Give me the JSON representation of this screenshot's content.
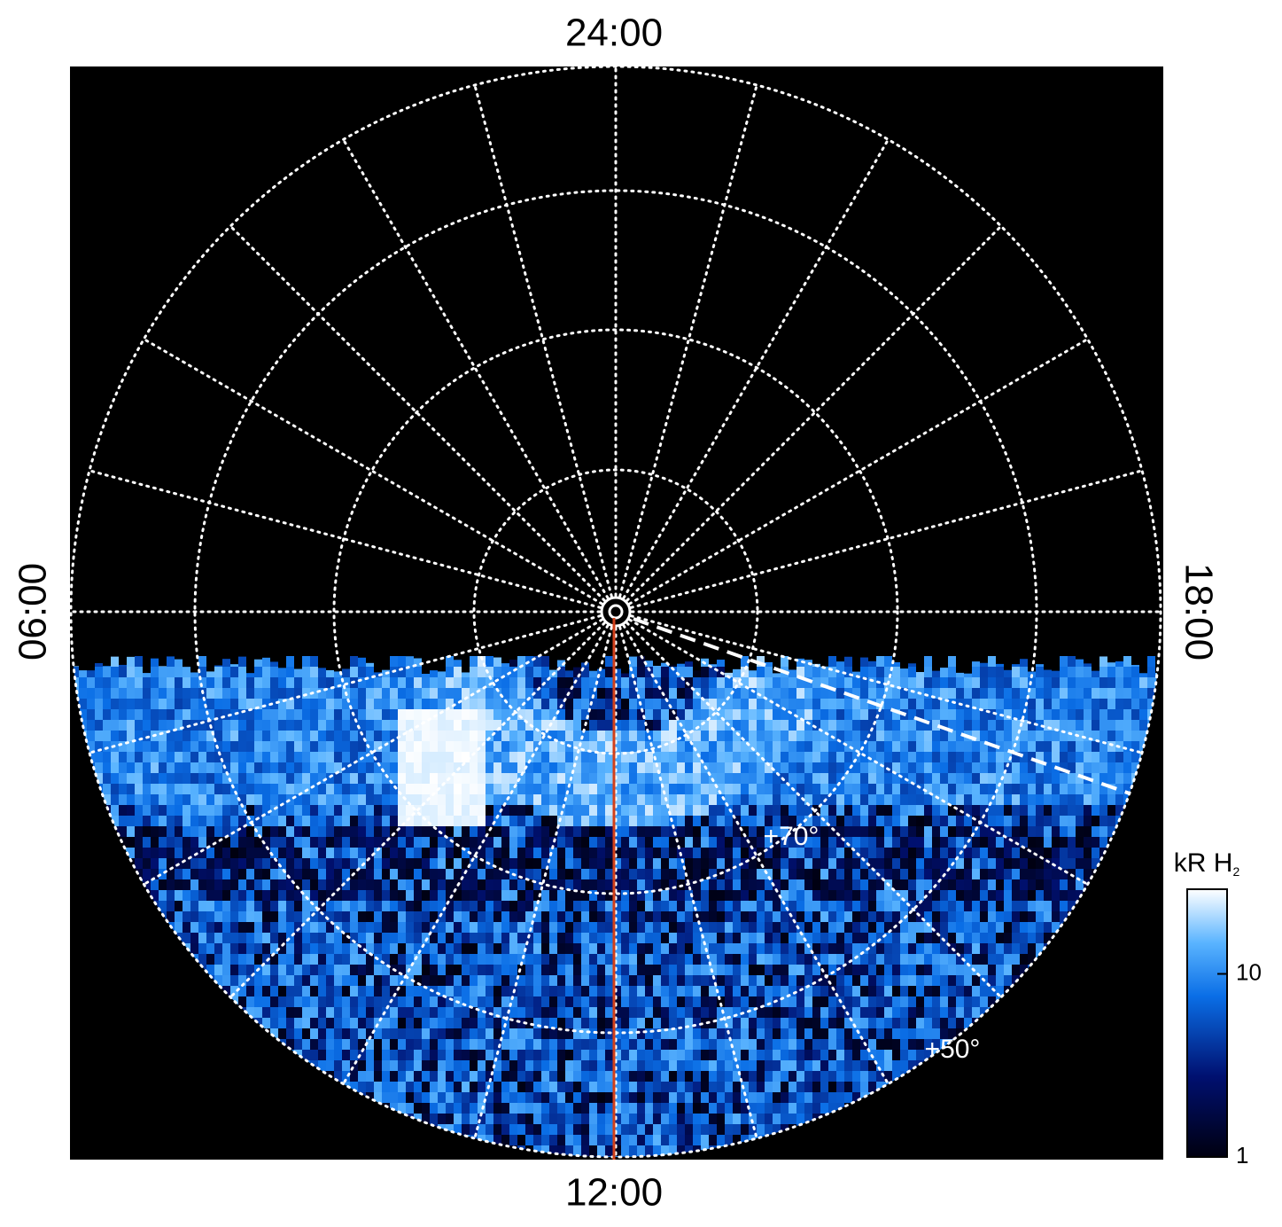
{
  "chart_data": {
    "type": "polar_map",
    "labels": {
      "top": "24:00",
      "bottom": "12:00",
      "left": "06:00",
      "right": "18:00"
    },
    "latitude_labels": [
      "+70°",
      "+50°"
    ],
    "colorbar": {
      "title": "kR H",
      "title_subscript": "2",
      "scale": "log",
      "lim": [
        1,
        29
      ],
      "ticks": [
        1,
        10
      ]
    },
    "colors": {
      "background": "#000000",
      "meridian_line": "#d2401a"
    }
  }
}
